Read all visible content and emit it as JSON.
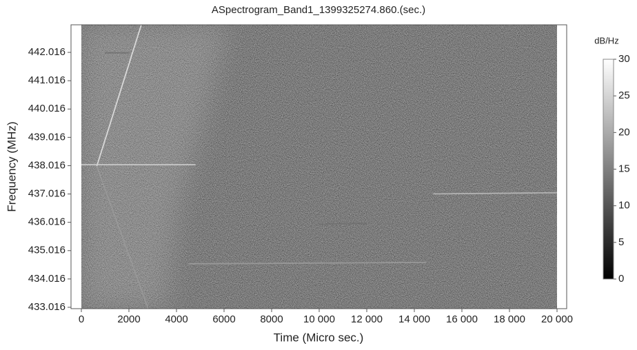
{
  "chart_data": {
    "type": "spectrogram",
    "title": "ASpectrogram_Band1_1399325274.860.(sec.)",
    "x_label": "Time (Micro sec.)",
    "y_label": "Frequency (MHz)",
    "xlim": [
      -435,
      20406
    ],
    "ylim": [
      432.967,
      442.99
    ],
    "image_x": [
      0,
      20000
    ],
    "xticks": [
      0,
      2000,
      4000,
      6000,
      8000,
      {
        "value": 10000,
        "label": "10 000"
      },
      {
        "value": 12000,
        "label": "12 000"
      },
      {
        "value": 14000,
        "label": "14 000"
      },
      {
        "value": 16000,
        "label": "16 000"
      },
      {
        "value": 18000,
        "label": "18 000"
      },
      {
        "value": 20000,
        "label": "20 000"
      }
    ],
    "yticks": [
      433.016,
      434.016,
      435.016,
      436.016,
      437.016,
      438.016,
      439.016,
      440.016,
      441.016,
      442.016
    ],
    "series": [
      {
        "color": "#e6e6e6",
        "x": [
          650,
          2520
        ],
        "values": [
          438.0,
          442.99
        ]
      },
      {
        "color": "#9a9a9a",
        "x": [
          650,
          2810
        ],
        "values": [
          438.0,
          432.97
        ]
      },
      {
        "color": "#cfcfcf",
        "x": [
          0,
          4800
        ],
        "values": [
          438.05,
          438.05
        ]
      },
      {
        "color": "#6e6e6e",
        "x": [
          1000,
          2000
        ],
        "values": [
          442.0,
          442.0
        ]
      },
      {
        "color": "#bdbdbd",
        "x": [
          14800,
          20000
        ],
        "values": [
          437.02,
          437.06
        ]
      },
      {
        "color": "#9e9e9e",
        "x": [
          4500,
          14500
        ],
        "values": [
          434.55,
          434.6
        ]
      },
      {
        "color": "#707070",
        "x": [
          10000,
          12000
        ],
        "values": [
          435.95,
          435.98
        ]
      }
    ],
    "colorbar": {
      "title": "dB/Hz",
      "lim": [
        0,
        30
      ],
      "ticks": [
        0,
        5,
        10,
        15,
        20,
        25,
        30
      ],
      "colors": [
        "#000000",
        "#ffffff"
      ]
    }
  }
}
